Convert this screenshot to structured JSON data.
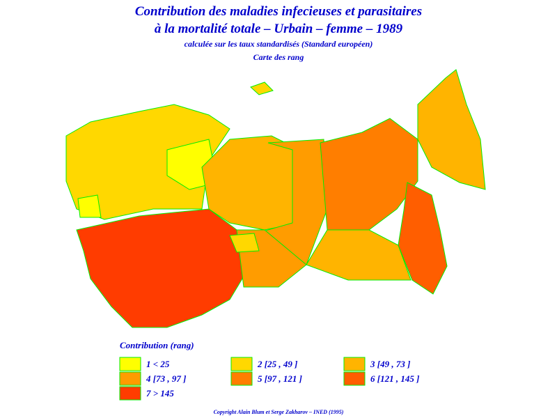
{
  "header": {
    "title_line1": "Contribution des maladies infecieuses et parasitaires",
    "title_line2": "à la mortalité totale – Urbain – femme – 1989",
    "subtitle": "calculée sur les taux standardisés (Standard européen)",
    "map_label": "Carte des rang"
  },
  "legend": {
    "title": "Contribution (rang)",
    "items": [
      {
        "label": "1  <  25",
        "color": "#ffff00"
      },
      {
        "label": "2 [25 , 49 ]",
        "color": "#ffd800"
      },
      {
        "label": "3 [49 , 73 ]",
        "color": "#ffb400"
      },
      {
        "label": "4 [73 , 97 ]",
        "color": "#ff9c00"
      },
      {
        "label": "5 [97 , 121 ]",
        "color": "#ff7e00"
      },
      {
        "label": "6 [121 , 145 ]",
        "color": "#ff5e00"
      },
      {
        "label": "7  >  145",
        "color": "#ff3c00"
      }
    ]
  },
  "footer": {
    "copyright": "Copyright Alain Blum et Serge Zakharov – INED (1995)"
  }
}
